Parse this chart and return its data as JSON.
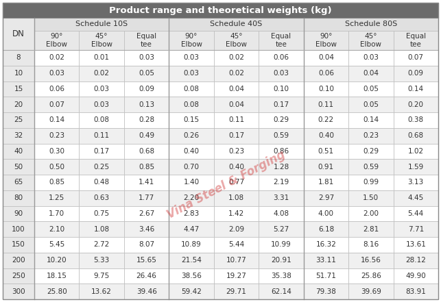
{
  "title": "Product range and theoretical weights (kg)",
  "group_labels": [
    "Schedule 10S",
    "Schedule 40S",
    "Schedule 80S"
  ],
  "sub_headers": [
    "90°\nElbow",
    "45°\nElbow",
    "Equal\ntee",
    "90°\nElbow",
    "45°\nElbow",
    "Equal\ntee",
    "90°\nElbow",
    "45°\nElbow",
    "Equal\ntee"
  ],
  "rows": [
    [
      8,
      0.02,
      0.01,
      0.03,
      0.03,
      0.02,
      0.06,
      0.04,
      0.03,
      0.07
    ],
    [
      10,
      0.03,
      0.02,
      0.05,
      0.03,
      0.02,
      0.03,
      0.06,
      0.04,
      0.09
    ],
    [
      15,
      0.06,
      0.03,
      0.09,
      0.08,
      0.04,
      0.1,
      0.1,
      0.05,
      0.14
    ],
    [
      20,
      0.07,
      0.03,
      0.13,
      0.08,
      0.04,
      0.17,
      0.11,
      0.05,
      0.2
    ],
    [
      25,
      0.14,
      0.08,
      0.28,
      0.15,
      0.11,
      0.29,
      0.22,
      0.14,
      0.38
    ],
    [
      32,
      0.23,
      0.11,
      0.49,
      0.26,
      0.17,
      0.59,
      0.4,
      0.23,
      0.68
    ],
    [
      40,
      0.3,
      0.17,
      0.68,
      0.4,
      0.23,
      0.86,
      0.51,
      0.29,
      1.02
    ],
    [
      50,
      0.5,
      0.25,
      0.85,
      0.7,
      0.4,
      1.28,
      0.91,
      0.59,
      1.59
    ],
    [
      65,
      0.85,
      0.48,
      1.41,
      1.4,
      0.77,
      2.19,
      1.81,
      0.99,
      3.13
    ],
    [
      80,
      1.25,
      0.63,
      1.77,
      2.2,
      1.08,
      3.31,
      2.97,
      1.5,
      4.45
    ],
    [
      90,
      1.7,
      0.75,
      2.67,
      2.83,
      1.42,
      4.08,
      4.0,
      2.0,
      5.44
    ],
    [
      100,
      2.1,
      1.08,
      3.46,
      4.47,
      2.09,
      5.27,
      6.18,
      2.81,
      7.71
    ],
    [
      150,
      5.45,
      2.72,
      8.07,
      10.89,
      5.44,
      10.99,
      16.32,
      8.16,
      13.61
    ],
    [
      200,
      10.2,
      5.33,
      15.65,
      21.54,
      10.77,
      20.91,
      33.11,
      16.56,
      28.12
    ],
    [
      250,
      18.15,
      9.75,
      26.46,
      38.56,
      19.27,
      35.38,
      51.71,
      25.86,
      49.9
    ],
    [
      300,
      25.8,
      13.62,
      39.46,
      59.42,
      29.71,
      62.14,
      79.38,
      39.69,
      83.91
    ]
  ],
  "title_bg": "#6b6b6b",
  "title_color": "#ffffff",
  "header_bg": "#e0e0e0",
  "header_color": "#333333",
  "subhdr_bg": "#e8e8e8",
  "subhdr_color": "#333333",
  "row_bg_white": "#ffffff",
  "row_bg_gray": "#f0f0f0",
  "dn_bg": "#e8e8e8",
  "cell_text_color": "#333333",
  "border_color": "#bbbbbb",
  "watermark_text": "Vina Steel & Forging",
  "watermark_color": "#cc2222"
}
